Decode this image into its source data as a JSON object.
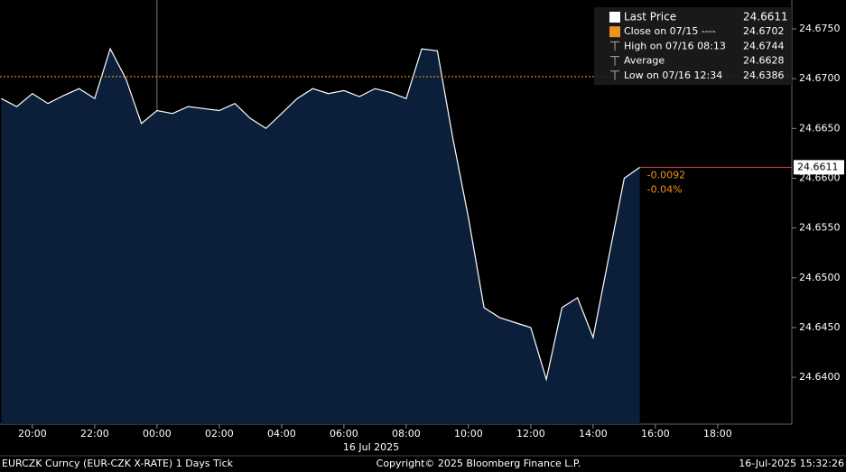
{
  "chart_data": {
    "type": "line",
    "x": [
      -5,
      -4.5,
      -4,
      -3.5,
      -3,
      -2.5,
      -2,
      -1.5,
      -1,
      -0.5,
      0,
      0.5,
      1,
      1.5,
      2,
      2.5,
      3,
      3.5,
      4,
      4.5,
      5,
      5.5,
      6,
      6.5,
      7,
      7.5,
      8,
      8.5,
      9,
      9.5,
      10,
      10.5,
      11,
      11.5,
      12,
      12.5,
      13,
      13.5,
      14,
      14.5,
      15,
      15.5
    ],
    "series": [
      {
        "name": "Last Price",
        "color": "#ffffff",
        "last": 24.6611,
        "values": [
          24.668,
          24.6672,
          24.6685,
          24.6675,
          24.6683,
          24.669,
          24.668,
          24.673,
          24.67,
          24.6655,
          24.6668,
          24.6665,
          24.6672,
          24.667,
          24.6668,
          24.6675,
          24.666,
          24.665,
          24.6665,
          24.668,
          24.669,
          24.6685,
          24.6688,
          24.6682,
          24.669,
          24.6686,
          24.668,
          24.673,
          24.6728,
          24.664,
          24.656,
          24.647,
          24.646,
          24.6455,
          24.645,
          24.6398,
          24.647,
          24.648,
          24.644,
          24.652,
          24.66,
          24.6611
        ]
      }
    ],
    "stats": [
      {
        "name": "Close on 07/15 ----",
        "value": 24.6702,
        "color": "#f0901e"
      },
      {
        "name": "High on 07/16 08:13",
        "value": 24.6744
      },
      {
        "name": "Average",
        "value": 24.6628
      },
      {
        "name": "Low on 07/16 12:34",
        "value": 24.6386
      }
    ],
    "change": -0.0092,
    "change_pct": "-0.04%",
    "xlim": [
      -5.04,
      20.38
    ],
    "ylim": [
      24.6353,
      24.6779
    ],
    "xticks": [
      {
        "value": -4,
        "label": "20:00"
      },
      {
        "value": -2,
        "label": "22:00"
      },
      {
        "value": 0,
        "label": "00:00"
      },
      {
        "value": 2,
        "label": "02:00"
      },
      {
        "value": 4,
        "label": "04:00"
      },
      {
        "value": 6,
        "label": "06:00"
      },
      {
        "value": 8,
        "label": "08:00"
      },
      {
        "value": 10,
        "label": "10:00"
      },
      {
        "value": 12,
        "label": "12:00"
      },
      {
        "value": 14,
        "label": "14:00"
      },
      {
        "value": 16,
        "label": "16:00"
      },
      {
        "value": 18,
        "label": "18:00"
      }
    ],
    "yticks": [
      {
        "value": 24.64,
        "label": "24.6400"
      },
      {
        "value": 24.645,
        "label": "24.6450"
      },
      {
        "value": 24.65,
        "label": "24.6500"
      },
      {
        "value": 24.655,
        "label": "24.6550"
      },
      {
        "value": 24.66,
        "label": "24.6600"
      },
      {
        "value": 24.665,
        "label": "24.6650"
      },
      {
        "value": 24.67,
        "label": "24.6700"
      },
      {
        "value": 24.675,
        "label": "24.6750"
      }
    ],
    "day_label": "16 Jul 2025",
    "footer": {
      "left": "EURCZK Curncy (EUR-CZK X-RATE) 1 Days  Tick",
      "center": "Copyright© 2025 Bloomberg Finance L.P.",
      "right": "16-Jul-2025 15:32:26"
    }
  }
}
